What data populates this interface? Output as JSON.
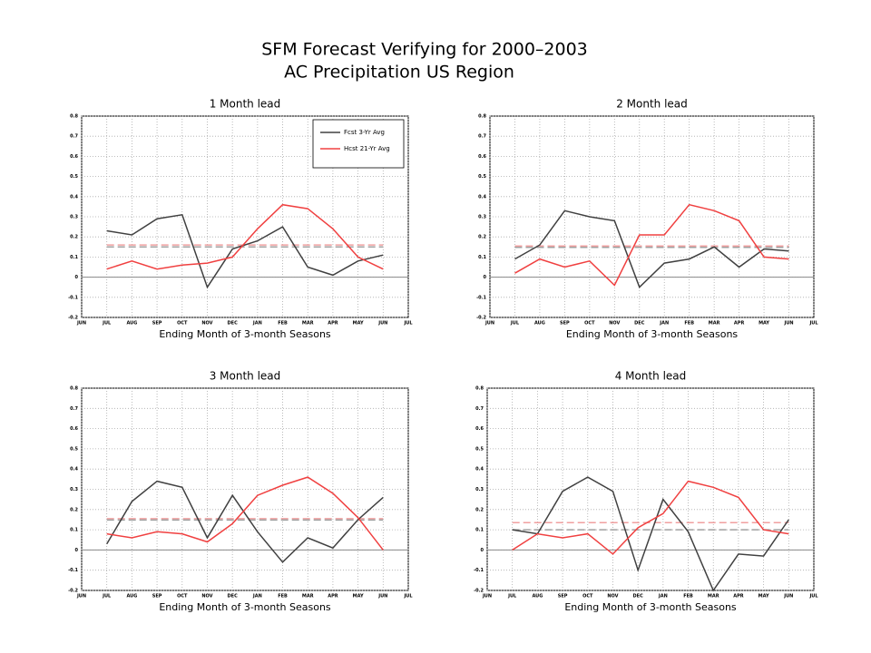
{
  "title": [
    "SFM Forecast Verifying for 2000–2003",
    "AC Precipitation US Region"
  ],
  "chart_data": [
    {
      "type": "line",
      "title": "1 Month lead",
      "xlabel": "Ending Month of 3-month Seasons",
      "categories": [
        "JUN",
        "JUL",
        "AUG",
        "SEP",
        "OCT",
        "NOV",
        "DEC",
        "JAN",
        "FEB",
        "MAR",
        "APR",
        "MAY",
        "JUN",
        "JUL"
      ],
      "ylim": [
        -0.2,
        0.8
      ],
      "yticks": [
        -0.2,
        -0.1,
        0,
        0.1,
        0.2,
        0.3,
        0.4,
        0.5,
        0.6,
        0.7,
        0.8
      ],
      "grid": true,
      "legend": "upper right",
      "series": [
        {
          "name": "Fcst 3-Yr Avg",
          "color": "#404040",
          "values": [
            null,
            0.23,
            0.21,
            0.29,
            0.31,
            -0.05,
            0.14,
            0.18,
            0.25,
            0.05,
            0.01,
            0.08,
            0.11,
            null
          ]
        },
        {
          "name": "Hcst 21-Yr Avg",
          "color": "#f04040",
          "values": [
            null,
            0.04,
            0.08,
            0.04,
            0.06,
            0.07,
            0.1,
            0.24,
            0.36,
            0.34,
            0.24,
            0.1,
            0.04,
            null
          ]
        }
      ],
      "reference_lines": [
        {
          "value": 0.16,
          "color": "#f0a0a0"
        },
        {
          "value": 0.15,
          "color": "#a0a0a0"
        }
      ]
    },
    {
      "type": "line",
      "title": "2 Month lead",
      "xlabel": "Ending Month of 3-month Seasons",
      "categories": [
        "JUN",
        "JUL",
        "AUG",
        "SEP",
        "OCT",
        "NOV",
        "DEC",
        "JAN",
        "FEB",
        "MAR",
        "APR",
        "MAY",
        "JUN",
        "JUL"
      ],
      "ylim": [
        -0.2,
        0.8
      ],
      "yticks": [
        -0.2,
        -0.1,
        0,
        0.1,
        0.2,
        0.3,
        0.4,
        0.5,
        0.6,
        0.7,
        0.8
      ],
      "grid": true,
      "series": [
        {
          "color": "#404040",
          "values": [
            null,
            0.09,
            0.16,
            0.33,
            0.3,
            0.28,
            -0.05,
            0.07,
            0.09,
            0.15,
            0.05,
            0.14,
            0.13,
            null
          ]
        },
        {
          "color": "#f04040",
          "values": [
            null,
            0.02,
            0.09,
            0.05,
            0.08,
            -0.04,
            0.21,
            0.21,
            0.36,
            0.33,
            0.28,
            0.1,
            0.09,
            null
          ]
        }
      ],
      "reference_lines": [
        {
          "value": 0.155,
          "color": "#f0a0a0"
        },
        {
          "value": 0.148,
          "color": "#a0a0a0"
        }
      ]
    },
    {
      "type": "line",
      "title": "3 Month lead",
      "xlabel": "Ending Month of 3-month Seasons",
      "categories": [
        "JUN",
        "JUL",
        "AUG",
        "SEP",
        "OCT",
        "NOV",
        "DEC",
        "JAN",
        "FEB",
        "MAR",
        "APR",
        "MAY",
        "JUN",
        "JUL"
      ],
      "ylim": [
        -0.2,
        0.8
      ],
      "yticks": [
        -0.2,
        -0.1,
        0,
        0.1,
        0.2,
        0.3,
        0.4,
        0.5,
        0.6,
        0.7,
        0.8
      ],
      "grid": true,
      "series": [
        {
          "color": "#404040",
          "values": [
            null,
            0.03,
            0.24,
            0.34,
            0.31,
            0.06,
            0.27,
            0.09,
            -0.06,
            0.06,
            0.01,
            0.15,
            0.26,
            null
          ]
        },
        {
          "color": "#f04040",
          "values": [
            null,
            0.08,
            0.06,
            0.09,
            0.08,
            0.04,
            0.13,
            0.27,
            0.32,
            0.36,
            0.28,
            0.16,
            0.0,
            null
          ]
        }
      ],
      "reference_lines": [
        {
          "value": 0.155,
          "color": "#f0a0a0"
        },
        {
          "value": 0.148,
          "color": "#a0a0a0"
        }
      ]
    },
    {
      "type": "line",
      "title": "4 Month lead",
      "xlabel": "Ending Month of 3-month Seasons",
      "categories": [
        "JUN",
        "JUL",
        "AUG",
        "SEP",
        "OCT",
        "NOV",
        "DEC",
        "JAN",
        "FEB",
        "MAR",
        "APR",
        "MAY",
        "JUN",
        "JUL"
      ],
      "ylim": [
        -0.2,
        0.8
      ],
      "yticks": [
        -0.2,
        -0.1,
        0,
        0.1,
        0.2,
        0.3,
        0.4,
        0.5,
        0.6,
        0.7,
        0.8
      ],
      "grid": true,
      "series": [
        {
          "color": "#404040",
          "values": [
            null,
            0.1,
            0.08,
            0.29,
            0.36,
            0.29,
            -0.1,
            0.25,
            0.09,
            -0.2,
            -0.02,
            -0.03,
            0.15,
            null
          ]
        },
        {
          "color": "#f04040",
          "values": [
            null,
            0.0,
            0.08,
            0.06,
            0.08,
            -0.02,
            0.11,
            0.18,
            0.34,
            0.31,
            0.26,
            0.1,
            0.08,
            null
          ]
        }
      ],
      "reference_lines": [
        {
          "value": 0.135,
          "color": "#f0a0a0"
        },
        {
          "value": 0.1,
          "color": "#a0a0a0"
        }
      ]
    }
  ]
}
